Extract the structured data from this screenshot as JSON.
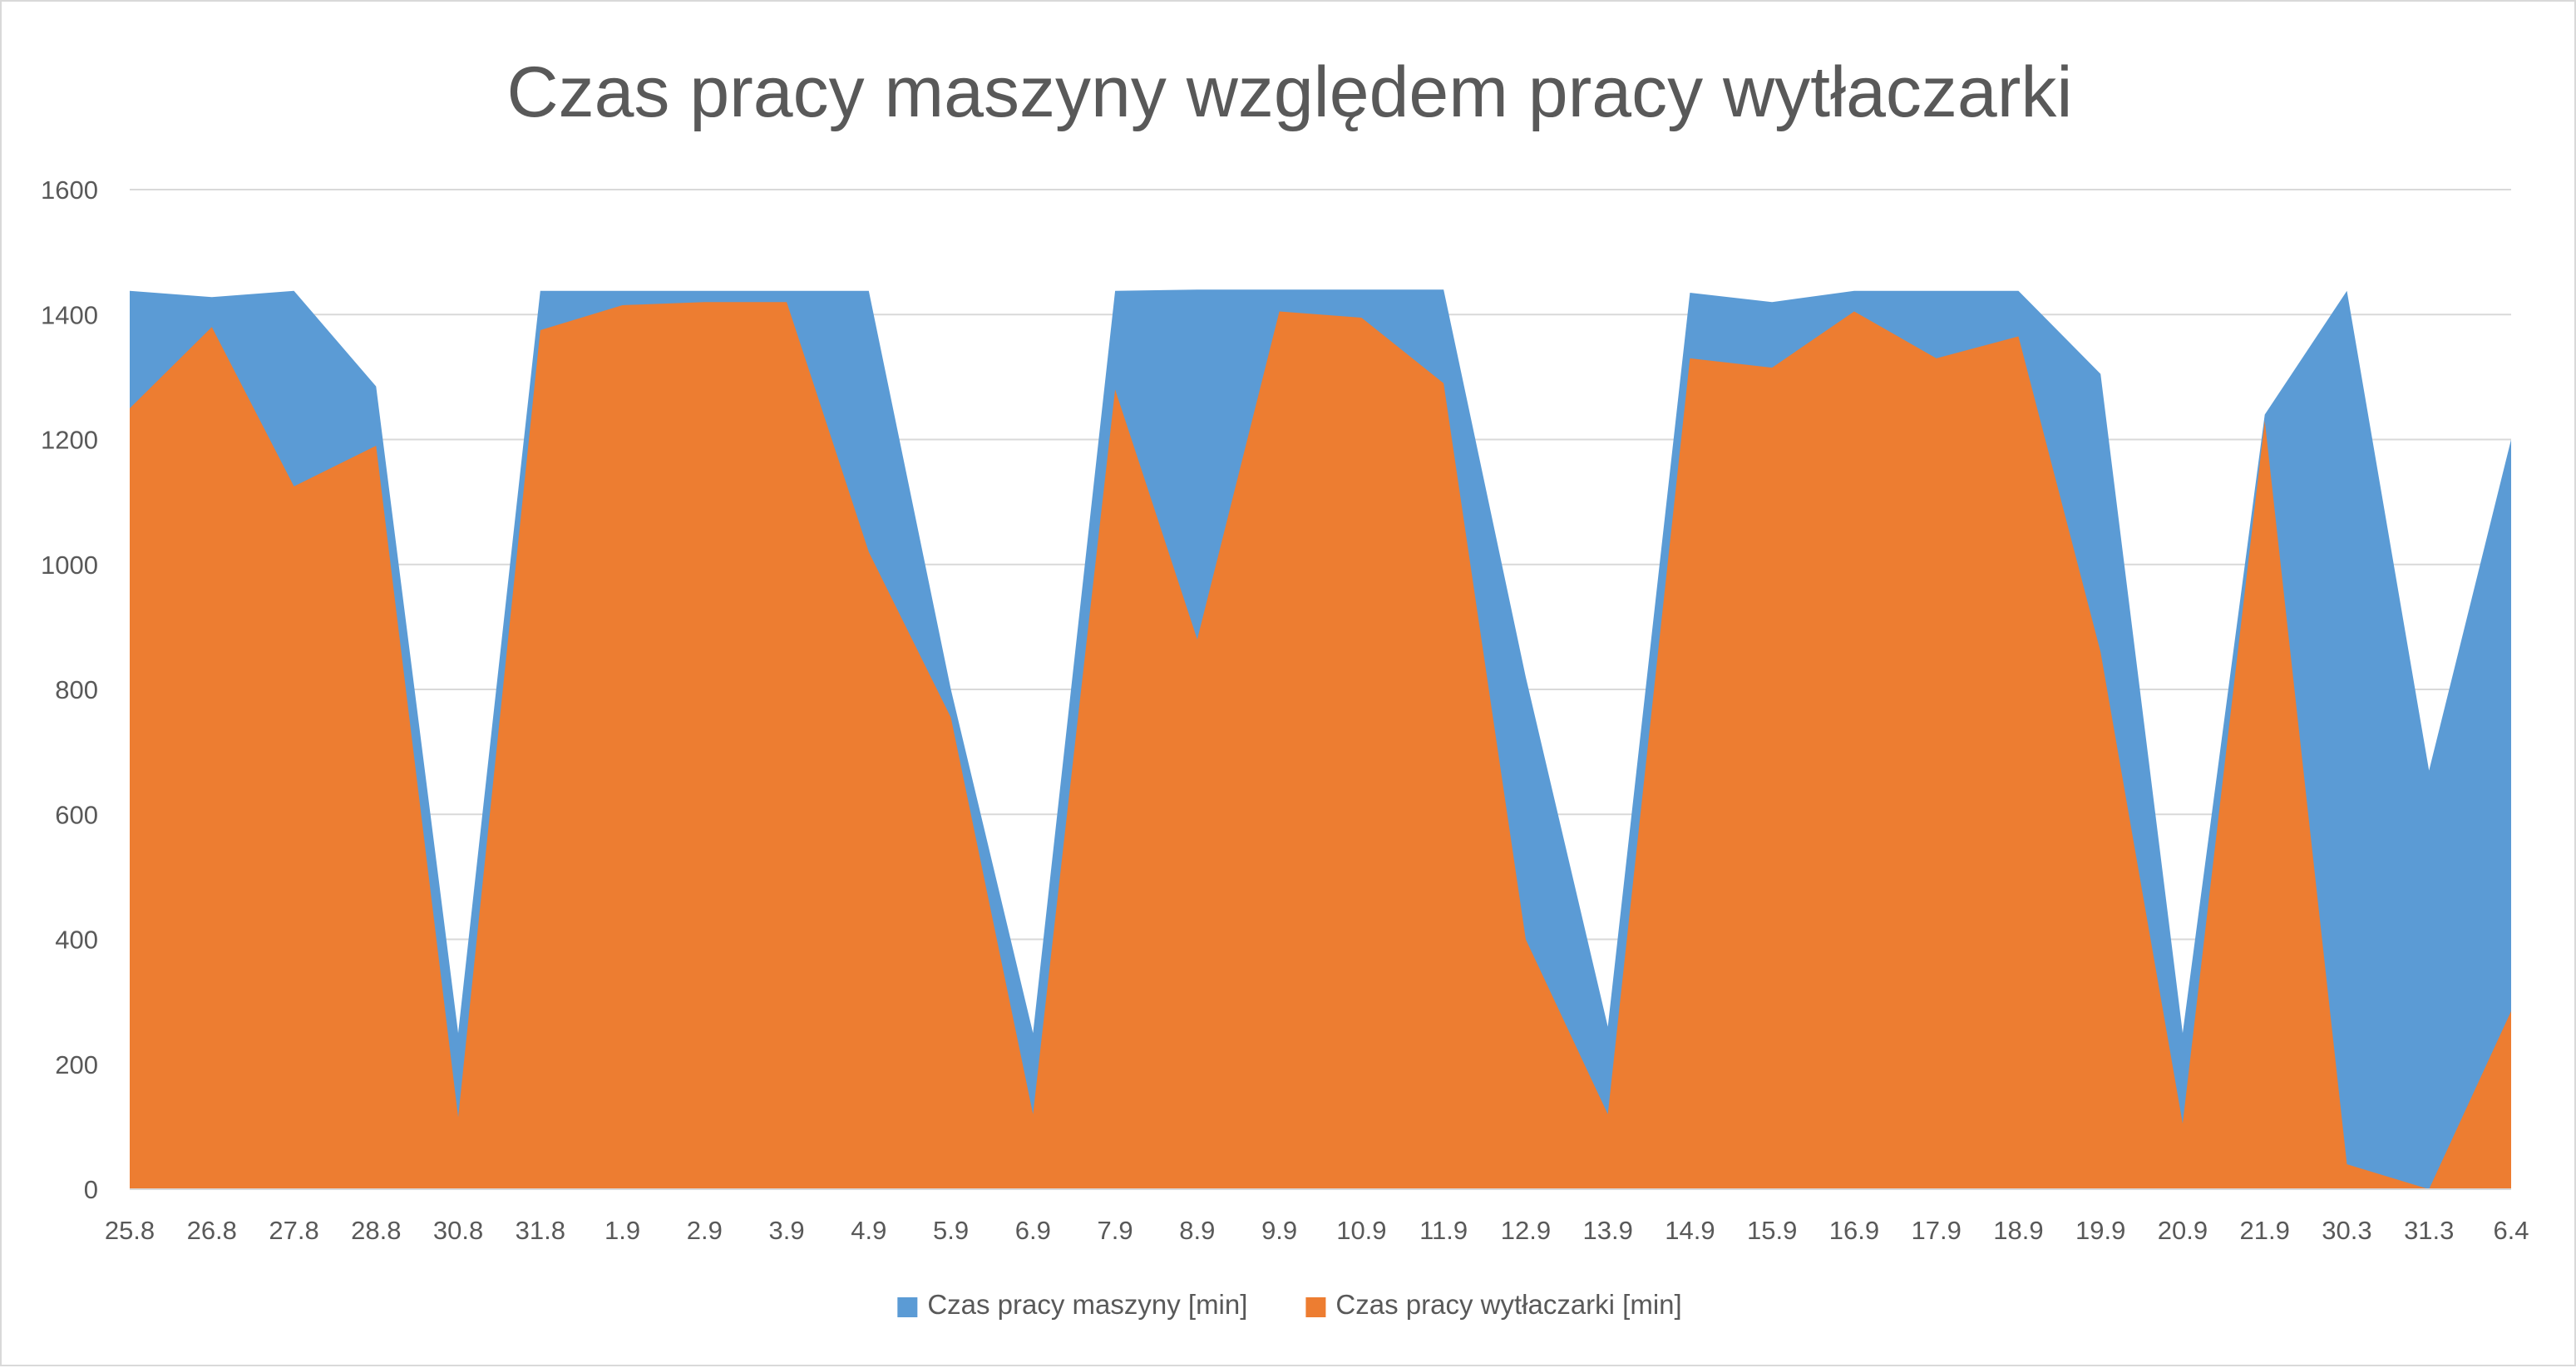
{
  "chart_data": {
    "type": "area",
    "title": "Czas pracy maszyny względem pracy wytłaczarki",
    "xlabel": "",
    "ylabel": "",
    "ylim": [
      0,
      1600
    ],
    "yticks": [
      0,
      200,
      400,
      600,
      800,
      1000,
      1200,
      1400,
      1600
    ],
    "grid": true,
    "legend_position": "bottom",
    "stacked": false,
    "categories": [
      "25.8",
      "26.8",
      "27.8",
      "28.8",
      "30.8",
      "31.8",
      "1.9",
      "2.9",
      "3.9",
      "4.9",
      "5.9",
      "6.9",
      "7.9",
      "8.9",
      "9.9",
      "10.9",
      "11.9",
      "12.9",
      "13.9",
      "14.9",
      "15.9",
      "16.9",
      "17.9",
      "18.9",
      "19.9",
      "20.9",
      "21.9",
      "30.3",
      "31.3",
      "6.4"
    ],
    "series": [
      {
        "name": "Czas pracy maszyny [min]",
        "color": "#5B9BD5",
        "values": [
          1438,
          1428,
          1438,
          1285,
          250,
          1438,
          1438,
          1438,
          1438,
          1438,
          800,
          250,
          1438,
          1440,
          1440,
          1440,
          1440,
          820,
          260,
          1435,
          1420,
          1438,
          1438,
          1438,
          1305,
          250,
          1240,
          1438,
          670,
          1200
        ]
      },
      {
        "name": "Czas pracy wytłaczarki [min]",
        "color": "#ED7D31",
        "values": [
          1250,
          1380,
          1125,
          1190,
          115,
          1375,
          1415,
          1420,
          1420,
          1020,
          755,
          120,
          1280,
          880,
          1405,
          1395,
          1290,
          400,
          120,
          1330,
          1315,
          1405,
          1330,
          1365,
          860,
          105,
          1230,
          40,
          0,
          285
        ]
      }
    ]
  }
}
